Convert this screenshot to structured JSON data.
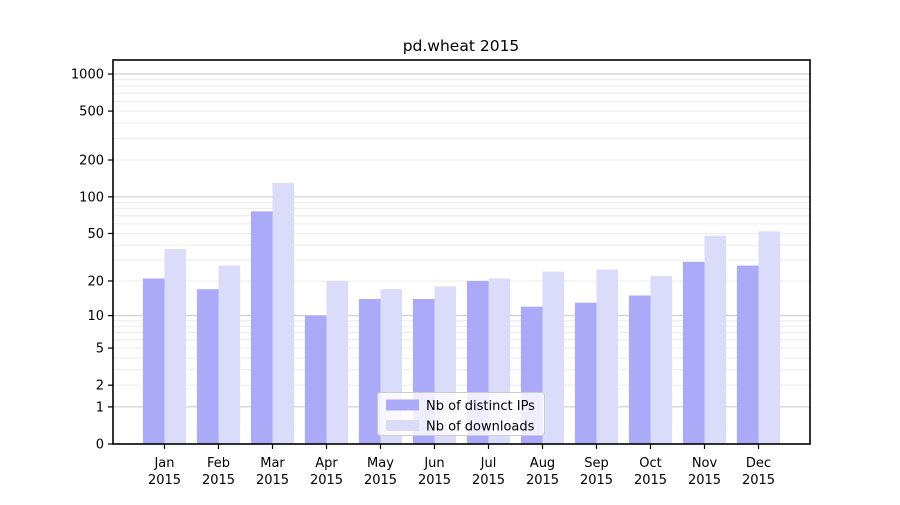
{
  "figure": {
    "background": "#ffffff"
  },
  "chart_data": {
    "type": "bar",
    "title": "pd.wheat 2015",
    "xlabel": "",
    "ylabel": "",
    "yscale": "log1p",
    "ylim": [
      0,
      1300
    ],
    "grid": "on",
    "categories": [
      "Jan 2015",
      "Feb 2015",
      "Mar 2015",
      "Apr 2015",
      "May 2015",
      "Jun 2015",
      "Jul 2015",
      "Aug 2015",
      "Sep 2015",
      "Oct 2015",
      "Nov 2015",
      "Dec 2015"
    ],
    "series": [
      {
        "name": "Nb of distinct IPs",
        "color": "#aaaaf8",
        "values": [
          21,
          17,
          76,
          10,
          14,
          14,
          20,
          12,
          13,
          15,
          29,
          27
        ]
      },
      {
        "name": "Nb of downloads",
        "color": "#dbdbfa",
        "values": [
          37,
          27,
          130,
          20,
          17,
          18,
          21,
          24,
          25,
          22,
          48,
          52
        ]
      }
    ],
    "yticks": [
      0,
      1,
      2,
      5,
      10,
      20,
      50,
      100,
      200,
      500,
      1000
    ],
    "gridlines": {
      "major": [
        1,
        10,
        100,
        1000
      ],
      "minor": [
        2,
        3,
        4,
        6,
        7,
        8,
        9,
        20,
        30,
        40,
        60,
        70,
        80,
        90,
        200,
        300,
        400,
        600,
        700,
        800,
        900,
        5,
        50,
        500
      ]
    },
    "legend": {
      "position": "lower center",
      "entries": [
        "Nb of distinct IPs",
        "Nb of downloads"
      ]
    }
  }
}
